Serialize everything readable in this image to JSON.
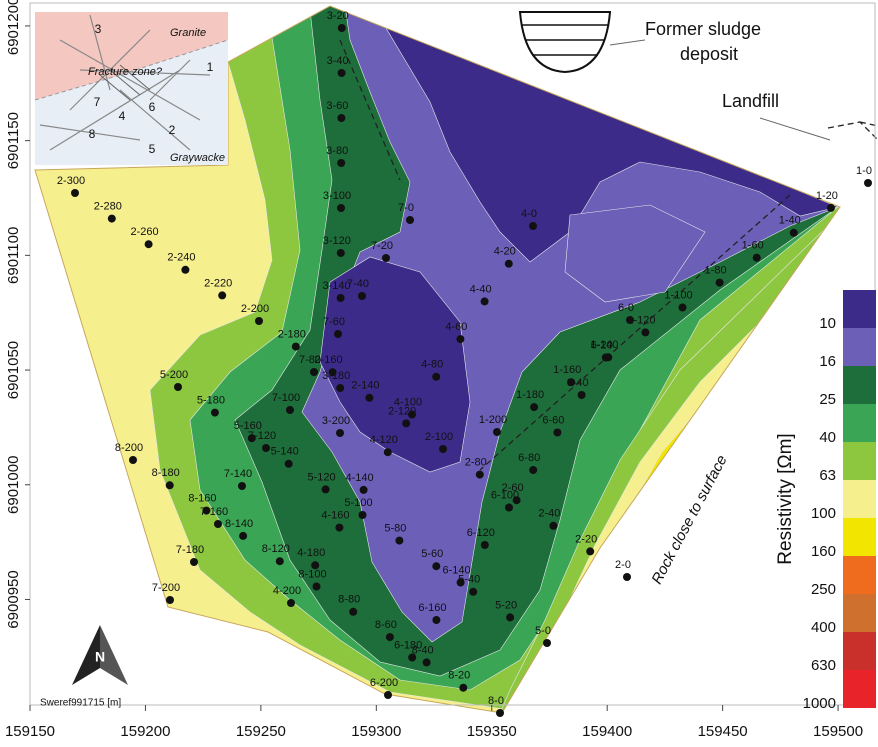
{
  "map": {
    "x_axis": {
      "lim": [
        159150,
        159516
      ],
      "ticks": [
        159150,
        159200,
        159250,
        159300,
        159350,
        159400,
        159450,
        159500
      ]
    },
    "y_axis": {
      "lim": [
        6900904,
        6901210
      ],
      "ticks": [
        6900950,
        6901000,
        6901050,
        6901100,
        6901150,
        6901200
      ]
    },
    "colorbar": {
      "title": "Resistivity [Ωm]",
      "levels": [
        10,
        16,
        25,
        40,
        63,
        100,
        160,
        250,
        400,
        630,
        1000
      ],
      "colors": [
        "#3d2b8a",
        "#6b5fb8",
        "#1e6e3b",
        "#3aa655",
        "#8dc63f",
        "#f6ef8e",
        "#f2e500",
        "#ef6c1f",
        "#d0702e",
        "#c9302c",
        "#e8232a"
      ]
    },
    "annotations": {
      "sludge": [
        "Former sludge",
        "deposit"
      ],
      "landfill": "Landfill",
      "rock": "Rock close to surface",
      "crs": "Sweref991715 [m]",
      "north": "N"
    },
    "inset": {
      "granite": "Granite",
      "fracture": "Fracture zone?",
      "graywacke": "Graywacke",
      "numbers": [
        "1",
        "2",
        "3",
        "4",
        "5",
        "6",
        "7",
        "8"
      ]
    },
    "profiles": [
      [
        "1-0",
        "1-20",
        "1-40",
        "1-60",
        "1-80",
        "1-100",
        "1-120",
        "1-140",
        "1-160",
        "1-180",
        "1-200"
      ],
      [
        "2-300",
        "2-280",
        "2-260",
        "2-240",
        "2-220",
        "2-200",
        "2-180",
        "2-160",
        "2-140",
        "2-120",
        "2-100",
        "2-80",
        "2-60",
        "2-40",
        "2-20",
        "2-0"
      ],
      [
        "3-20",
        "3-40",
        "3-60",
        "3-80",
        "3-100",
        "3-120",
        "3-140",
        "3-180",
        "3-200"
      ],
      [
        "4-0",
        "4-20",
        "4-40",
        "4-60",
        "4-80",
        "4-100",
        "4-120",
        "4-140",
        "4-160",
        "4-180",
        "4-200"
      ],
      [
        "5-200",
        "5-180",
        "5-160",
        "5-140",
        "5-120",
        "5-100",
        "5-80",
        "5-60",
        "5-40",
        "5-20",
        "5-0"
      ],
      [
        "6-0",
        "6-20",
        "6-40",
        "6-60",
        "6-80",
        "6-100",
        "6-120",
        "6-140",
        "6-160",
        "6-180",
        "6-200"
      ],
      [
        "7-0",
        "7-20",
        "7-40",
        "7-60",
        "7-80",
        "7-100",
        "7-120",
        "7-140",
        "7-160",
        "7-180",
        "7-200"
      ],
      [
        "8-200",
        "8-180",
        "8-160",
        "8-140",
        "8-120",
        "8-100",
        "8-80",
        "8-60",
        "8-40",
        "8-20",
        "8-0"
      ]
    ]
  }
}
